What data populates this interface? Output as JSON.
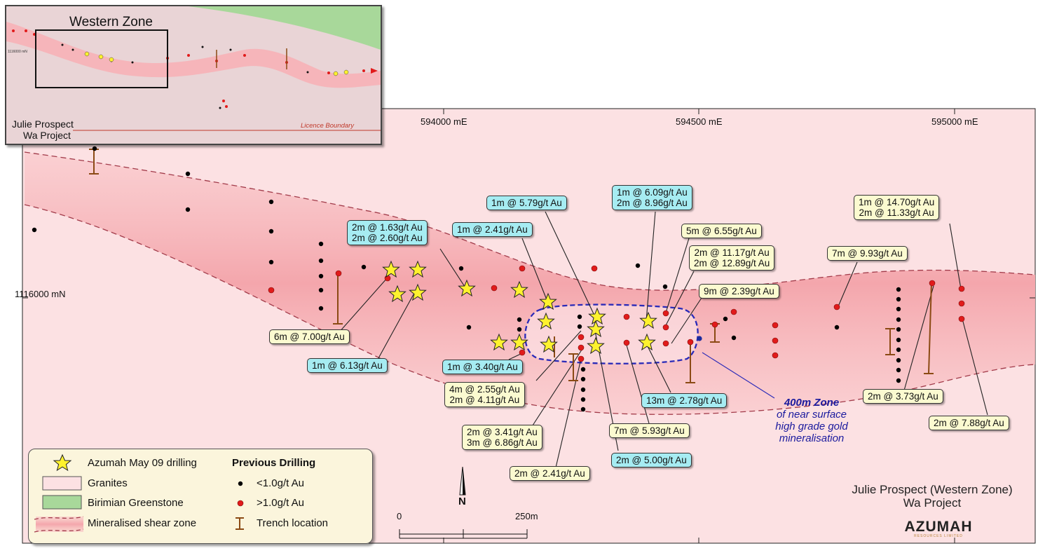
{
  "coords": {
    "e1": "594000  mE",
    "e2": "594500  mE",
    "e3": "595000  mE",
    "n1": "1116000  mN"
  },
  "inset": {
    "title": "Western Zone",
    "licence": "Licence Boundary",
    "project_line1": "Julie Prospect",
    "project_line2": "Wa Project",
    "mn_label": "1116000 mN"
  },
  "labels": [
    {
      "lines": [
        "2m @ 1.63g/t Au",
        "2m @ 2.60g/t Au"
      ],
      "style": "cyan"
    },
    {
      "lines": [
        "1m @ 2.41g/t Au"
      ],
      "style": "cyan"
    },
    {
      "lines": [
        "1m @ 5.79g/t Au"
      ],
      "style": "cyan"
    },
    {
      "lines": [
        "1m @ 6.09g/t Au",
        "2m @ 8.96g/t Au"
      ],
      "style": "cyan"
    },
    {
      "lines": [
        "5m @ 6.55g/t Au"
      ],
      "style": "yellow"
    },
    {
      "lines": [
        "2m @ 11.17g/t Au",
        "2m @ 12.89g/t Au"
      ],
      "style": "yellow"
    },
    {
      "lines": [
        "9m @ 2.39g/t Au"
      ],
      "style": "yellow"
    },
    {
      "lines": [
        "7m @ 9.93g/t Au"
      ],
      "style": "yellow"
    },
    {
      "lines": [
        "1m @ 14.70g/t Au",
        "2m @ 11.33g/t Au"
      ],
      "style": "yellow"
    },
    {
      "lines": [
        "6m @ 7.00g/t Au"
      ],
      "style": "yellow"
    },
    {
      "lines": [
        "1m @ 6.13g/t Au"
      ],
      "style": "cyan"
    },
    {
      "lines": [
        "1m @ 3.40g/t Au"
      ],
      "style": "cyan"
    },
    {
      "lines": [
        "4m @ 2.55g/t Au",
        "2m @ 4.11g/t Au"
      ],
      "style": "yellow"
    },
    {
      "lines": [
        "2m @ 3.41g/t Au",
        "3m @ 6.86g/t Au"
      ],
      "style": "yellow"
    },
    {
      "lines": [
        "2m @ 2.41g/t Au"
      ],
      "style": "yellow"
    },
    {
      "lines": [
        "2m @ 5.00g/t Au"
      ],
      "style": "cyan"
    },
    {
      "lines": [
        "7m @ 5.93g/t Au"
      ],
      "style": "yellow"
    },
    {
      "lines": [
        "13m @ 2.78g/t Au"
      ],
      "style": "cyan"
    },
    {
      "lines": [
        "2m @ 3.73g/t Au"
      ],
      "style": "yellow"
    },
    {
      "lines": [
        "2m @ 7.88g/t Au"
      ],
      "style": "yellow"
    }
  ],
  "zone_note": {
    "title": "400m Zone",
    "line1": "of near surface",
    "line2": "high grade gold",
    "line3": "mineralisation"
  },
  "legend": {
    "azumah": "Azumah May 09 drilling",
    "granites": "Granites",
    "greenstone": "Birimian Greenstone",
    "shear": "Mineralised shear zone",
    "previous": "Previous Drilling",
    "low": "<1.0g/t Au",
    "high": ">1.0g/t Au",
    "trench": "Trench location"
  },
  "scale": {
    "start": "0",
    "end": "250m",
    "north": "N"
  },
  "project": {
    "line1": "Julie Prospect (Western Zone)",
    "line2": "Wa Project"
  },
  "logo": {
    "name": "AZUMAH",
    "sub": "RESOURCES LIMITED"
  },
  "colors": {
    "granite": "#fbe1e3",
    "shear": "#f7b3b8",
    "greenstone": "#a8d89a",
    "star": "#fff22e",
    "high_grade_dot": "#e11b1b",
    "low_grade_dot": "#000000",
    "trench": "#8b4a14",
    "zone_outline": "#2a2ab8"
  }
}
